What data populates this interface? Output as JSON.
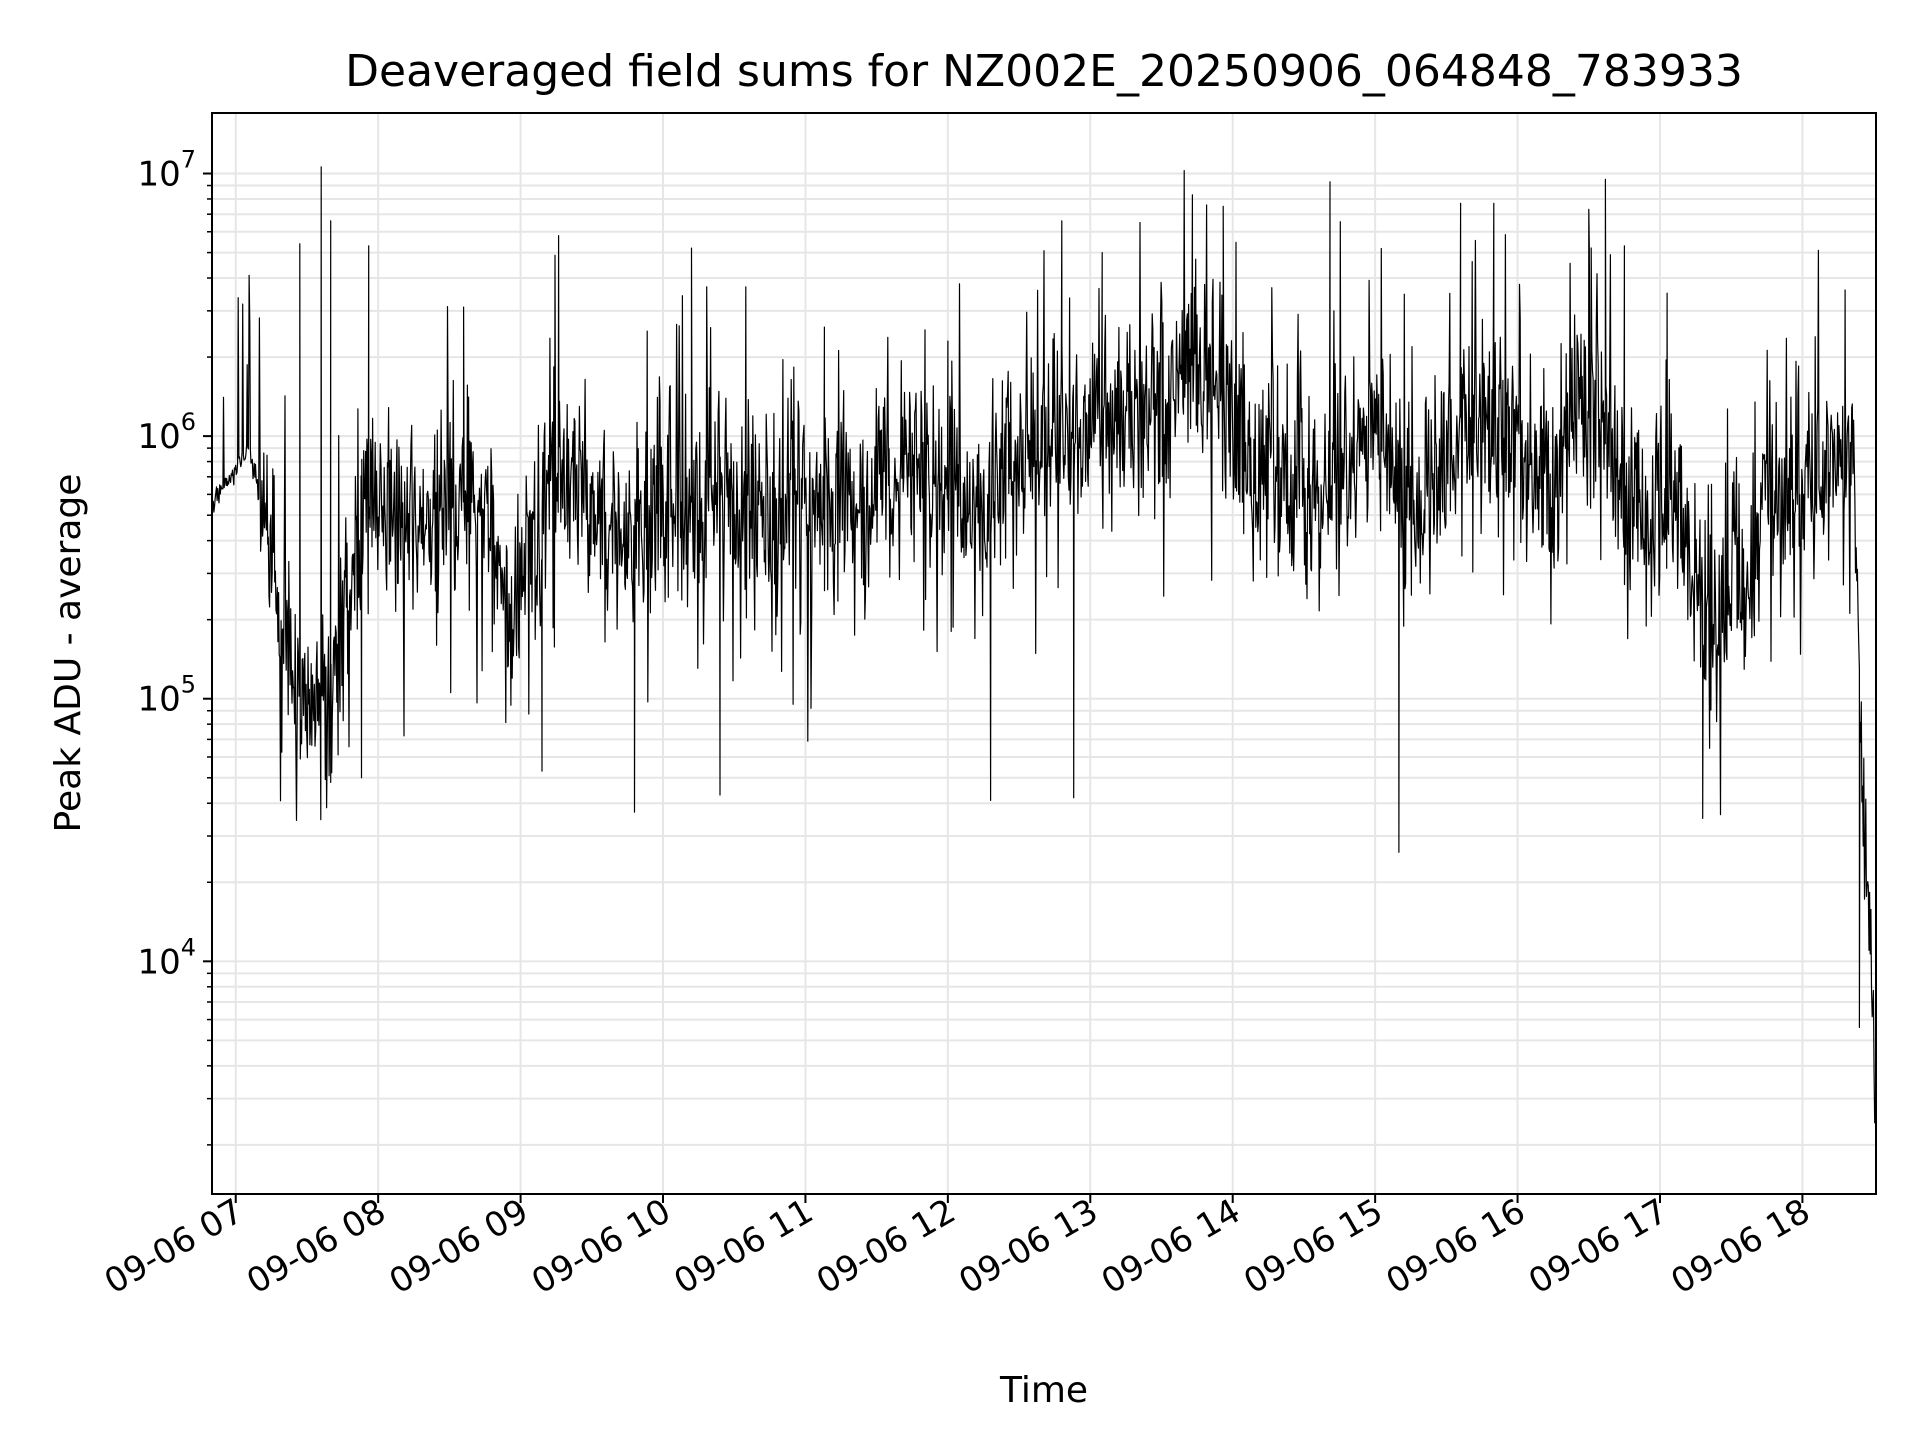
{
  "chart_data": {
    "type": "line",
    "title": "Deaveraged field sums for NZ002E_20250906_064848_783933",
    "xlabel": "Time",
    "ylabel": "Peak ADU - average",
    "x_ticks": [
      "09-06 07",
      "09-06 08",
      "09-06 09",
      "09-06 10",
      "09-06 11",
      "09-06 12",
      "09-06 13",
      "09-06 14",
      "09-06 15",
      "09-06 16",
      "09-06 17",
      "09-06 18"
    ],
    "x_range": [
      "2025-09-06 06:50",
      "2025-09-06 18:31"
    ],
    "yscale": "log",
    "ylim": [
      1300,
      17000000
    ],
    "y_ticks": [
      {
        "base": "10",
        "exp": "4",
        "value": 10000
      },
      {
        "base": "10",
        "exp": "5",
        "value": 100000
      },
      {
        "base": "10",
        "exp": "6",
        "value": 1000000
      },
      {
        "base": "10",
        "exp": "7",
        "value": 10000000
      }
    ],
    "grid": true,
    "line_color": "#000000",
    "series": [
      {
        "x": [
          "2025-09-06 06:50",
          "2025-09-06 06:58",
          "2025-09-06 07:06",
          "2025-09-06 07:13",
          "2025-09-06 07:20",
          "2025-09-06 07:28",
          "2025-09-06 07:35",
          "2025-09-06 07:42",
          "2025-09-06 07:50",
          "2025-09-06 07:58",
          "2025-09-06 08:06",
          "2025-09-06 08:15",
          "2025-09-06 08:25",
          "2025-09-06 08:35",
          "2025-09-06 08:45",
          "2025-09-06 08:55",
          "2025-09-06 09:05",
          "2025-09-06 09:15",
          "2025-09-06 09:25",
          "2025-09-06 09:35",
          "2025-09-06 09:45",
          "2025-09-06 09:55",
          "2025-09-06 10:05",
          "2025-09-06 10:15",
          "2025-09-06 10:25",
          "2025-09-06 10:35",
          "2025-09-06 10:45",
          "2025-09-06 10:55",
          "2025-09-06 11:05",
          "2025-09-06 11:15",
          "2025-09-06 11:25",
          "2025-09-06 11:35",
          "2025-09-06 11:45",
          "2025-09-06 11:55",
          "2025-09-06 12:05",
          "2025-09-06 12:15",
          "2025-09-06 12:25",
          "2025-09-06 12:35",
          "2025-09-06 12:45",
          "2025-09-06 12:55",
          "2025-09-06 13:05",
          "2025-09-06 13:15",
          "2025-09-06 13:25",
          "2025-09-06 13:35",
          "2025-09-06 13:45",
          "2025-09-06 13:55",
          "2025-09-06 14:05",
          "2025-09-06 14:15",
          "2025-09-06 14:25",
          "2025-09-06 14:35",
          "2025-09-06 14:45",
          "2025-09-06 14:55",
          "2025-09-06 15:05",
          "2025-09-06 15:15",
          "2025-09-06 15:25",
          "2025-09-06 15:35",
          "2025-09-06 15:45",
          "2025-09-06 15:55",
          "2025-09-06 16:05",
          "2025-09-06 16:15",
          "2025-09-06 16:25",
          "2025-09-06 16:35",
          "2025-09-06 16:45",
          "2025-09-06 16:55",
          "2025-09-06 17:05",
          "2025-09-06 17:15",
          "2025-09-06 17:25",
          "2025-09-06 17:35",
          "2025-09-06 17:45",
          "2025-09-06 17:55",
          "2025-09-06 18:05",
          "2025-09-06 18:15",
          "2025-09-06 18:22",
          "2025-09-06 18:25",
          "2025-09-06 18:28",
          "2025-09-06 18:31"
        ],
        "y": [
          550000,
          700000,
          900000,
          400000,
          200000,
          100000,
          90000,
          120000,
          350000,
          600000,
          500000,
          450000,
          500000,
          600000,
          500000,
          200000,
          400000,
          800000,
          700000,
          450000,
          400000,
          500000,
          550000,
          450000,
          550000,
          500000,
          400000,
          500000,
          450000,
          550000,
          500000,
          650000,
          900000,
          600000,
          700000,
          500000,
          750000,
          800000,
          1000000,
          900000,
          1200000,
          1000000,
          1400000,
          1600000,
          2000000,
          1500000,
          900000,
          700000,
          550000,
          500000,
          700000,
          1100000,
          900000,
          450000,
          600000,
          900000,
          1400000,
          1100000,
          800000,
          700000,
          1300000,
          1200000,
          500000,
          500000,
          600000,
          250000,
          200000,
          300000,
          600000,
          500000,
          700000,
          900000,
          800000,
          50000,
          15000,
          2500
        ],
        "peaks": [
          {
            "x": "2025-09-06 07:27",
            "y": 5400000
          },
          {
            "x": "2025-09-06 07:36",
            "y": 10600000
          },
          {
            "x": "2025-09-06 07:40",
            "y": 6600000
          },
          {
            "x": "2025-09-06 07:56",
            "y": 5300000
          },
          {
            "x": "2025-09-06 08:36",
            "y": 3100000
          },
          {
            "x": "2025-09-06 09:16",
            "y": 5800000
          },
          {
            "x": "2025-09-06 10:12",
            "y": 5200000
          },
          {
            "x": "2025-09-06 11:08",
            "y": 2600000
          },
          {
            "x": "2025-09-06 12:00",
            "y": 2300000
          },
          {
            "x": "2025-09-06 12:48",
            "y": 6600000
          },
          {
            "x": "2025-09-06 13:05",
            "y": 5000000
          },
          {
            "x": "2025-09-06 13:43",
            "y": 8300000
          },
          {
            "x": "2025-09-06 13:56",
            "y": 7500000
          },
          {
            "x": "2025-09-06 14:41",
            "y": 9300000
          },
          {
            "x": "2025-09-06 15:36",
            "y": 7700000
          },
          {
            "x": "2025-09-06 15:50",
            "y": 7700000
          },
          {
            "x": "2025-09-06 16:30",
            "y": 7300000
          },
          {
            "x": "2025-09-06 16:37",
            "y": 9500000
          },
          {
            "x": "2025-09-06 16:45",
            "y": 5300000
          },
          {
            "x": "2025-09-06 17:03",
            "y": 3500000
          },
          {
            "x": "2025-09-06 18:18",
            "y": 3600000
          }
        ],
        "troughs": [
          {
            "x": "2025-09-06 07:40",
            "y": 48000
          },
          {
            "x": "2025-09-06 07:53",
            "y": 50000
          },
          {
            "x": "2025-09-06 09:09",
            "y": 53000
          },
          {
            "x": "2025-09-06 09:48",
            "y": 37000
          },
          {
            "x": "2025-09-06 10:24",
            "y": 43000
          },
          {
            "x": "2025-09-06 12:18",
            "y": 41000
          },
          {
            "x": "2025-09-06 12:53",
            "y": 42000
          },
          {
            "x": "2025-09-06 15:10",
            "y": 26000
          },
          {
            "x": "2025-09-06 17:18",
            "y": 35000
          },
          {
            "x": "2025-09-06 18:24",
            "y": 5600
          },
          {
            "x": "2025-09-06 18:31",
            "y": 2000
          }
        ]
      }
    ]
  }
}
